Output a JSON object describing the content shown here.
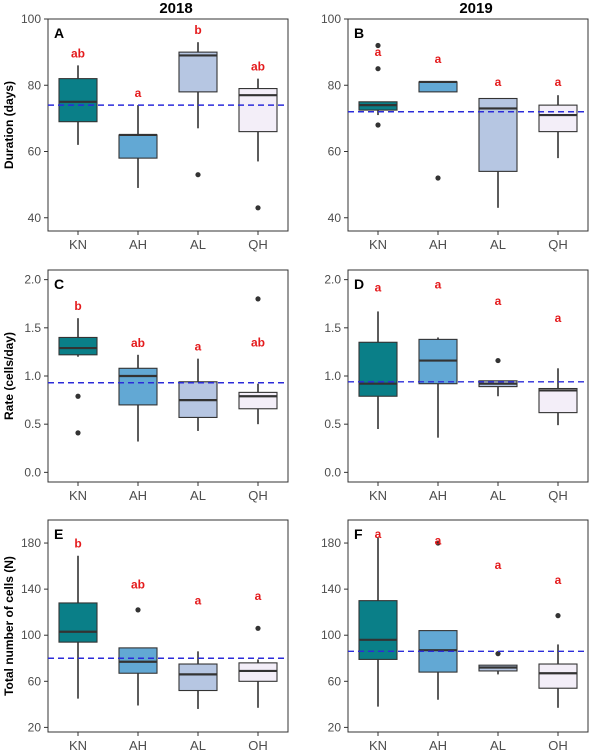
{
  "figure": {
    "col_titles": [
      "2018",
      "2019"
    ],
    "categories": [
      "KN",
      "AH",
      "AL",
      "QH"
    ],
    "fill_colors": [
      "#0a7f88",
      "#62a8d4",
      "#b6c6e2",
      "#f3eef8"
    ]
  },
  "chart_data": [
    {
      "type": "box",
      "panel": "A",
      "row": 0,
      "col": 0,
      "ylabel": "Duration (days)",
      "ylim": [
        36,
        100
      ],
      "yticks": [
        40,
        60,
        80,
        100
      ],
      "mean_line": 74,
      "boxes": [
        {
          "category": "KN",
          "min": 62,
          "q1": 69,
          "median": 75,
          "q3": 82,
          "max": 86,
          "outliers": [],
          "letter": "ab"
        },
        {
          "category": "AH",
          "min": 49,
          "q1": 58,
          "median": 65,
          "q3": 65,
          "max": 74,
          "outliers": [],
          "letter": "a"
        },
        {
          "category": "AL",
          "min": 67,
          "q1": 78,
          "median": 89,
          "q3": 90,
          "max": 93,
          "outliers": [
            53
          ],
          "letter": "b"
        },
        {
          "category": "QH",
          "min": 57,
          "q1": 66,
          "median": 77,
          "q3": 79,
          "max": 82,
          "outliers": [
            43
          ],
          "letter": "ab"
        }
      ]
    },
    {
      "type": "box",
      "panel": "B",
      "row": 0,
      "col": 1,
      "ylabel": "",
      "ylim": [
        36,
        100
      ],
      "yticks": [
        40,
        60,
        80,
        100
      ],
      "mean_line": 72,
      "boxes": [
        {
          "category": "KN",
          "min": 71,
          "q1": 72.5,
          "median": 74,
          "q3": 75,
          "max": 75,
          "outliers": [
            68,
            85,
            92
          ],
          "letter": "a"
        },
        {
          "category": "AH",
          "min": 78,
          "q1": 78,
          "median": 81,
          "q3": 81,
          "max": 81,
          "outliers": [
            52
          ],
          "letter": "a"
        },
        {
          "category": "AL",
          "min": 43,
          "q1": 54,
          "median": 73,
          "q3": 76,
          "max": 76,
          "outliers": [],
          "letter": "a"
        },
        {
          "category": "QH",
          "min": 58,
          "q1": 66,
          "median": 71,
          "q3": 74,
          "max": 77,
          "outliers": [],
          "letter": "a"
        }
      ]
    },
    {
      "type": "box",
      "panel": "C",
      "row": 1,
      "col": 0,
      "ylabel": "Rate (cells/day)",
      "ylim": [
        -0.1,
        2.1
      ],
      "yticks": [
        0.0,
        0.5,
        1.0,
        1.5,
        2.0
      ],
      "mean_line": 0.93,
      "boxes": [
        {
          "category": "KN",
          "min": 1.2,
          "q1": 1.22,
          "median": 1.29,
          "q3": 1.4,
          "max": 1.6,
          "outliers": [
            0.41,
            0.79
          ],
          "letter": "b"
        },
        {
          "category": "AH",
          "min": 0.32,
          "q1": 0.7,
          "median": 1.0,
          "q3": 1.08,
          "max": 1.22,
          "outliers": [],
          "letter": "ab"
        },
        {
          "category": "AL",
          "min": 0.43,
          "q1": 0.57,
          "median": 0.75,
          "q3": 0.94,
          "max": 1.18,
          "outliers": [],
          "letter": "a"
        },
        {
          "category": "QH",
          "min": 0.5,
          "q1": 0.66,
          "median": 0.79,
          "q3": 0.83,
          "max": 0.92,
          "outliers": [
            1.8
          ],
          "letter": "ab"
        }
      ]
    },
    {
      "type": "box",
      "panel": "D",
      "row": 1,
      "col": 1,
      "ylabel": "",
      "ylim": [
        -0.1,
        2.1
      ],
      "yticks": [
        0.0,
        0.5,
        1.0,
        1.5,
        2.0
      ],
      "mean_line": 0.94,
      "boxes": [
        {
          "category": "KN",
          "min": 0.45,
          "q1": 0.79,
          "median": 0.92,
          "q3": 1.35,
          "max": 1.67,
          "outliers": [],
          "letter": "a"
        },
        {
          "category": "AH",
          "min": 0.36,
          "q1": 0.92,
          "median": 1.16,
          "q3": 1.38,
          "max": 1.4,
          "outliers": [],
          "letter": "a"
        },
        {
          "category": "AL",
          "min": 0.79,
          "q1": 0.89,
          "median": 0.92,
          "q3": 0.95,
          "max": 0.95,
          "outliers": [
            1.16
          ],
          "letter": "a"
        },
        {
          "category": "QH",
          "min": 0.49,
          "q1": 0.62,
          "median": 0.85,
          "q3": 0.87,
          "max": 1.08,
          "outliers": [],
          "letter": "a"
        }
      ]
    },
    {
      "type": "box",
      "panel": "E",
      "row": 2,
      "col": 0,
      "ylabel": "Total number of cells (N)",
      "ylim": [
        16,
        200
      ],
      "yticks": [
        20,
        60,
        100,
        140,
        180
      ],
      "mean_line": 80,
      "boxes": [
        {
          "category": "KN",
          "min": 45,
          "q1": 94,
          "median": 103,
          "q3": 128,
          "max": 169,
          "outliers": [],
          "letter": "b"
        },
        {
          "category": "AH",
          "min": 39,
          "q1": 67,
          "median": 77,
          "q3": 89,
          "max": 89,
          "outliers": [
            122
          ],
          "letter": "ab"
        },
        {
          "category": "AL",
          "min": 36,
          "q1": 52,
          "median": 66,
          "q3": 75,
          "max": 86,
          "outliers": [],
          "letter": "a"
        },
        {
          "category": "QH",
          "min": 37,
          "q1": 60,
          "median": 69,
          "q3": 76,
          "max": 79,
          "outliers": [
            106
          ],
          "letter": "a"
        }
      ]
    },
    {
      "type": "box",
      "panel": "F",
      "row": 2,
      "col": 1,
      "ylabel": "",
      "ylim": [
        16,
        200
      ],
      "yticks": [
        20,
        60,
        100,
        140,
        180
      ],
      "mean_line": 86,
      "boxes": [
        {
          "category": "KN",
          "min": 38,
          "q1": 79,
          "median": 96,
          "q3": 130,
          "max": 185,
          "outliers": [],
          "letter": "a"
        },
        {
          "category": "AH",
          "min": 44,
          "q1": 68,
          "median": 87,
          "q3": 104,
          "max": 104,
          "outliers": [
            180
          ],
          "letter": "a"
        },
        {
          "category": "AL",
          "min": 66,
          "q1": 69,
          "median": 72,
          "q3": 74,
          "max": 74,
          "outliers": [
            84
          ],
          "letter": "a"
        },
        {
          "category": "QH",
          "min": 37,
          "q1": 54,
          "median": 67,
          "q3": 75,
          "max": 92,
          "outliers": [
            117
          ],
          "letter": "a"
        }
      ]
    }
  ]
}
